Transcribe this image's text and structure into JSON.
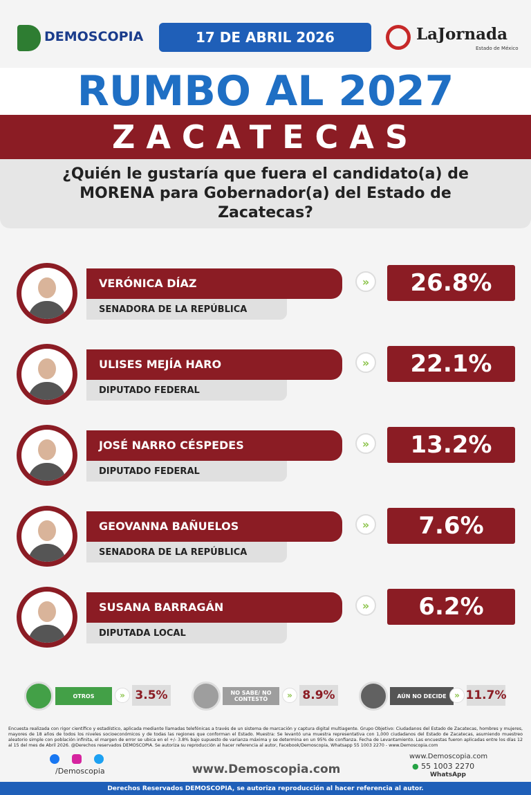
{
  "header": {
    "logo": "DEMOSCOPIA",
    "date": "17 DE ABRIL 2026",
    "partner": "LaJornada",
    "partner_sub": "Estado de México"
  },
  "title": "RUMBO AL 2027",
  "state": "ZACATECAS",
  "question": "¿Quién le gustaría que fuera el candidato(a) de MORENA para Gobernador(a) del Estado de Zacatecas?",
  "candidates": [
    {
      "name": "VERÓNICA DÍAZ",
      "role": "SENADORA DE LA REPÚBLICA",
      "result": "26.8%"
    },
    {
      "name": "ULISES MEJÍA HARO",
      "role": "DIPUTADO FEDERAL",
      "result": "22.1%"
    },
    {
      "name": "JOSÉ NARRO CÉSPEDES",
      "role": "DIPUTADO FEDERAL",
      "result": "13.2%"
    },
    {
      "name": "GEOVANNA BAÑUELOS",
      "role": "SENADORA DE LA REPÚBLICA",
      "result": "7.6%"
    },
    {
      "name": "SUSANA BARRAGÁN",
      "role": "DIPUTADA LOCAL",
      "result": "6.2%"
    }
  ],
  "others": [
    {
      "label": "OTROS",
      "result": "3.5%"
    },
    {
      "label": "NO SABE/ NO CONTESTÓ",
      "result": "8.9%"
    },
    {
      "label": "AÚN NO DECIDE",
      "result": "11.7%"
    }
  ],
  "footnote": "Encuesta realizada con rigor científico y estadístico, aplicada mediante llamadas telefónicas a través de un sistema de marcación y captura digital multiagente. Grupo Objetivo: Ciudadanos del Estado de Zacatecas, hombres y mujeres, mayores de 18 años de todos los niveles socioeconómicos y de todas las regiones que conforman el Estado. Muestra: Se levantó una muestra representativa con 1,000 ciudadanos del Estado de Zacatecas, asumiendo muestreo aleatorio simple con población infinita, el margen de error se ubica en el +/- 3.8% bajo supuesto de varianza máxima y se determina en un 95% de confianza. Fecha de Levantamiento. Las encuestas fueron aplicadas entre los días 12 al 15 del mes de Abril 2026. @Derechos reservados DEMOSCOPIA. Se autoriza su reproducción al hacer referencia al autor, Facebook/Demoscopia, Whatsapp 55 1003 2270 - www.Demoscopia.com",
  "footer": {
    "social": "/Demoscopia",
    "site": "www.Demoscopia.com",
    "contact_site": "www.Demoscopia.com",
    "phone": "55 1003 2270",
    "phone_label": "WhatsApp",
    "rights": "Derechos Reservados DEMOSCOPIA, se autoriza reproducción al hacer referencia al autor."
  }
}
